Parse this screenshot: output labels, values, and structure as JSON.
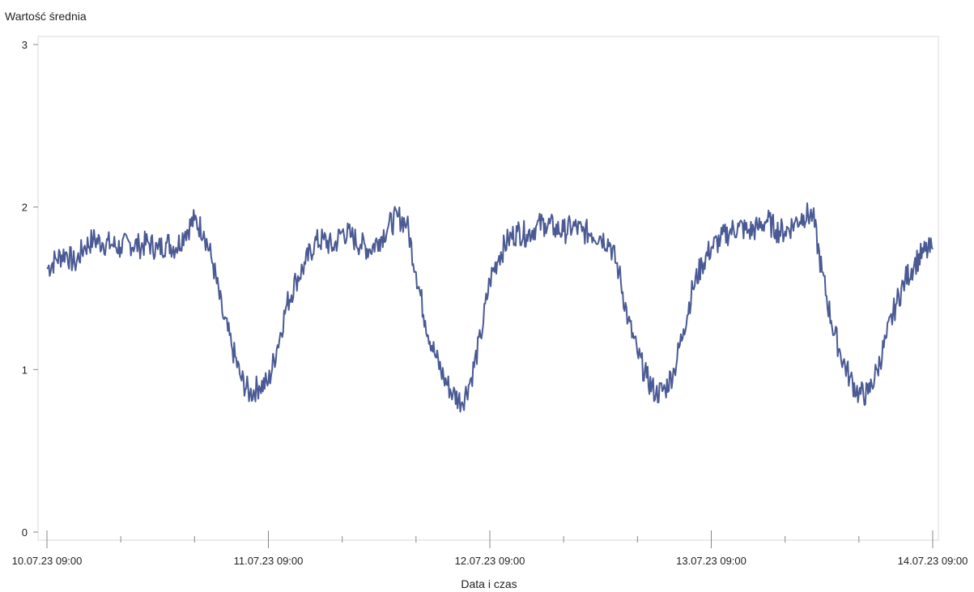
{
  "chart_data": {
    "type": "line",
    "ylabel": "Wartość średnia",
    "xlabel": "Data i czas",
    "ylim": [
      0,
      3
    ],
    "yticks": [
      0,
      1,
      2,
      3
    ],
    "xlim": [
      "2023-07-10T09:00",
      "2023-07-14T09:00"
    ],
    "xticks": [
      {
        "value": "2023-07-10T09:00",
        "label": "10.07.23 09:00"
      },
      {
        "value": "2023-07-11T09:00",
        "label": "11.07.23 09:00"
      },
      {
        "value": "2023-07-12T09:00",
        "label": "12.07.23 09:00"
      },
      {
        "value": "2023-07-13T09:00",
        "label": "13.07.23 09:00"
      },
      {
        "value": "2023-07-14T09:00",
        "label": "14.07.23 09:00"
      }
    ],
    "minor_xticks": [
      "2023-07-10T17:00",
      "2023-07-11T01:00",
      "2023-07-11T17:00",
      "2023-07-12T01:00",
      "2023-07-12T17:00",
      "2023-07-13T01:00",
      "2023-07-13T17:00",
      "2023-07-14T01:00"
    ],
    "grid": false,
    "series_color": "#4a5a94",
    "series": [
      {
        "x": [
          "2023-07-10T09:00",
          "2023-07-10T10:00",
          "2023-07-10T11:00",
          "2023-07-10T12:00",
          "2023-07-10T13:00",
          "2023-07-10T14:00",
          "2023-07-10T15:00",
          "2023-07-10T16:00",
          "2023-07-10T17:00",
          "2023-07-10T18:00",
          "2023-07-10T19:00",
          "2023-07-10T20:00",
          "2023-07-10T21:00",
          "2023-07-10T22:00",
          "2023-07-10T23:00",
          "2023-07-11T00:00",
          "2023-07-11T01:00",
          "2023-07-11T02:00",
          "2023-07-11T03:00",
          "2023-07-11T04:00",
          "2023-07-11T05:00",
          "2023-07-11T06:00",
          "2023-07-11T07:00",
          "2023-07-11T08:00",
          "2023-07-11T09:00",
          "2023-07-11T10:00",
          "2023-07-11T11:00",
          "2023-07-11T12:00",
          "2023-07-11T13:00",
          "2023-07-11T14:00",
          "2023-07-11T15:00",
          "2023-07-11T16:00",
          "2023-07-11T17:00",
          "2023-07-11T18:00",
          "2023-07-11T19:00",
          "2023-07-11T20:00",
          "2023-07-11T21:00",
          "2023-07-11T22:00",
          "2023-07-11T23:00",
          "2023-07-12T00:00",
          "2023-07-12T01:00",
          "2023-07-12T02:00",
          "2023-07-12T03:00",
          "2023-07-12T04:00",
          "2023-07-12T05:00",
          "2023-07-12T06:00",
          "2023-07-12T07:00",
          "2023-07-12T08:00",
          "2023-07-12T09:00",
          "2023-07-12T10:00",
          "2023-07-12T11:00",
          "2023-07-12T12:00",
          "2023-07-12T13:00",
          "2023-07-12T14:00",
          "2023-07-12T15:00",
          "2023-07-12T16:00",
          "2023-07-12T17:00",
          "2023-07-12T18:00",
          "2023-07-12T19:00",
          "2023-07-12T20:00",
          "2023-07-12T21:00",
          "2023-07-12T22:00",
          "2023-07-12T23:00",
          "2023-07-13T00:00",
          "2023-07-13T01:00",
          "2023-07-13T02:00",
          "2023-07-13T03:00",
          "2023-07-13T04:00",
          "2023-07-13T05:00",
          "2023-07-13T06:00",
          "2023-07-13T07:00",
          "2023-07-13T08:00",
          "2023-07-13T09:00",
          "2023-07-13T10:00",
          "2023-07-13T11:00",
          "2023-07-13T12:00",
          "2023-07-13T13:00",
          "2023-07-13T14:00",
          "2023-07-13T15:00",
          "2023-07-13T16:00",
          "2023-07-13T17:00",
          "2023-07-13T18:00",
          "2023-07-13T19:00",
          "2023-07-13T20:00",
          "2023-07-13T21:00",
          "2023-07-13T22:00",
          "2023-07-13T23:00",
          "2023-07-14T00:00",
          "2023-07-14T01:00",
          "2023-07-14T02:00",
          "2023-07-14T03:00",
          "2023-07-14T04:00",
          "2023-07-14T05:00",
          "2023-07-14T06:00",
          "2023-07-14T07:00",
          "2023-07-14T08:00",
          "2023-07-14T09:00"
        ],
        "values": [
          1.62,
          1.68,
          1.72,
          1.65,
          1.75,
          1.8,
          1.78,
          1.77,
          1.75,
          1.78,
          1.76,
          1.78,
          1.74,
          1.78,
          1.75,
          1.85,
          1.92,
          1.85,
          1.65,
          1.35,
          1.15,
          0.95,
          0.85,
          0.9,
          0.92,
          1.15,
          1.4,
          1.55,
          1.65,
          1.78,
          1.8,
          1.75,
          1.85,
          1.82,
          1.77,
          1.74,
          1.8,
          1.88,
          1.94,
          1.9,
          1.6,
          1.3,
          1.1,
          0.95,
          0.85,
          0.8,
          0.95,
          1.2,
          1.55,
          1.7,
          1.8,
          1.85,
          1.83,
          1.88,
          1.9,
          1.87,
          1.85,
          1.88,
          1.85,
          1.84,
          1.82,
          1.78,
          1.6,
          1.3,
          1.1,
          0.95,
          0.85,
          0.88,
          1.0,
          1.25,
          1.5,
          1.65,
          1.75,
          1.8,
          1.85,
          1.88,
          1.85,
          1.87,
          1.92,
          1.86,
          1.85,
          1.9,
          1.95,
          1.95,
          1.6,
          1.3,
          1.1,
          0.95,
          0.85,
          0.85,
          1.0,
          1.2,
          1.4,
          1.55,
          1.65,
          1.72,
          1.74
        ]
      }
    ]
  }
}
